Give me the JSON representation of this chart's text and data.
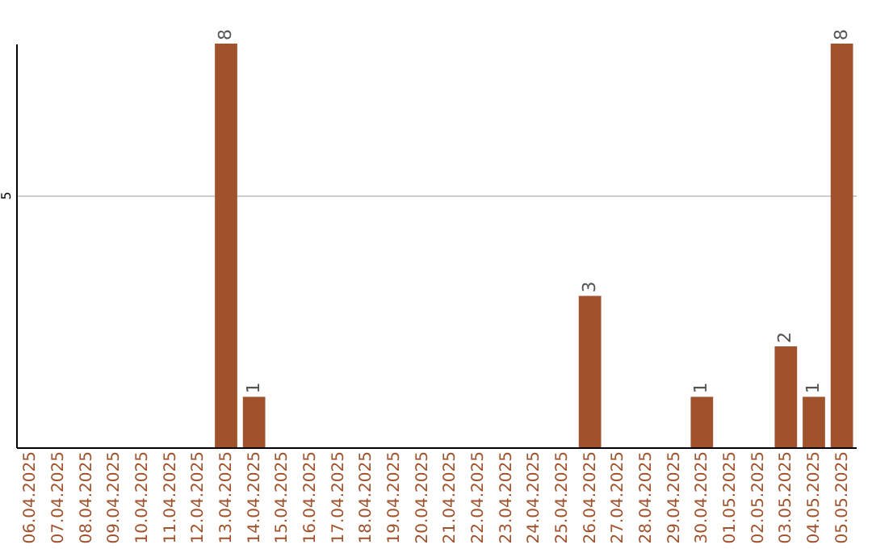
{
  "chart_data": {
    "type": "bar",
    "categories": [
      "06.04.2025",
      "07.04.2025",
      "08.04.2025",
      "09.04.2025",
      "10.04.2025",
      "11.04.2025",
      "12.04.2025",
      "13.04.2025",
      "14.04.2025",
      "15.04.2025",
      "16.04.2025",
      "17.04.2025",
      "18.04.2025",
      "19.04.2025",
      "20.04.2025",
      "21.04.2025",
      "22.04.2025",
      "23.04.2025",
      "24.04.2025",
      "25.04.2025",
      "26.04.2025",
      "27.04.2025",
      "28.04.2025",
      "29.04.2025",
      "30.04.2025",
      "01.05.2025",
      "02.05.2025",
      "03.05.2025",
      "04.05.2025",
      "05.05.2025"
    ],
    "values": [
      0,
      0,
      0,
      0,
      0,
      0,
      0,
      8,
      1,
      0,
      0,
      0,
      0,
      0,
      0,
      0,
      0,
      0,
      0,
      0,
      3,
      0,
      0,
      0,
      1,
      0,
      0,
      2,
      1,
      8
    ],
    "value_labels": [
      null,
      null,
      null,
      null,
      null,
      null,
      null,
      "8",
      "1",
      null,
      null,
      null,
      null,
      null,
      null,
      null,
      null,
      null,
      null,
      null,
      "3",
      null,
      null,
      null,
      "1",
      null,
      null,
      "2",
      "1",
      "8"
    ],
    "color": "#a0522d",
    "ylim": [
      0,
      8
    ],
    "yticks": [
      5
    ],
    "grid": "y"
  }
}
